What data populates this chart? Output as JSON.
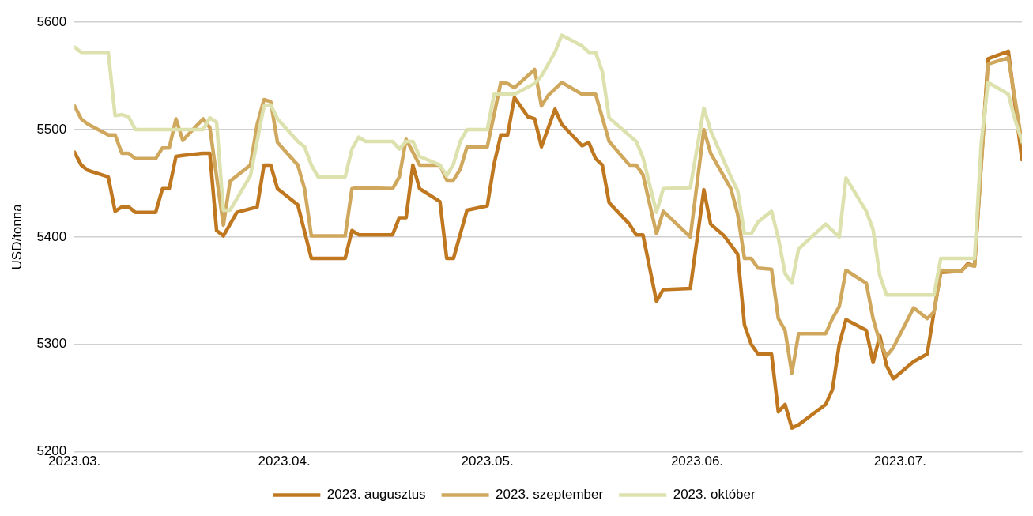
{
  "chart_data": {
    "type": "line",
    "ylabel": "USD/tonna",
    "xlim": [
      "2023-03-01",
      "2023-07-19"
    ],
    "xticks": [
      {
        "value": "2023-03-01",
        "label": "2023.03."
      },
      {
        "value": "2023-04-01",
        "label": "2023.04."
      },
      {
        "value": "2023-05-01",
        "label": "2023.05."
      },
      {
        "value": "2023-06-01",
        "label": "2023.06."
      },
      {
        "value": "2023-07-01",
        "label": "2023.07."
      }
    ],
    "ylim": [
      5200,
      5600
    ],
    "yticks": [
      5200,
      5300,
      5400,
      5500,
      5600
    ],
    "grid": "y",
    "legend": "bottom",
    "marker": "none",
    "line_style": "solid",
    "series": [
      {
        "name": "2023. augusztus",
        "color": "#c07820",
        "x": [
          "2023-03-01",
          "2023-03-02",
          "2023-03-03",
          "2023-03-06",
          "2023-03-07",
          "2023-03-08",
          "2023-03-09",
          "2023-03-10",
          "2023-03-13",
          "2023-03-14",
          "2023-03-15",
          "2023-03-16",
          "2023-03-17",
          "2023-03-20",
          "2023-03-21",
          "2023-03-22",
          "2023-03-23",
          "2023-03-25",
          "2023-03-28",
          "2023-03-29",
          "2023-03-30",
          "2023-03-31",
          "2023-04-03",
          "2023-04-04",
          "2023-04-05",
          "2023-04-10",
          "2023-04-11",
          "2023-04-12",
          "2023-04-17",
          "2023-04-18",
          "2023-04-19",
          "2023-04-20",
          "2023-04-21",
          "2023-04-24",
          "2023-04-25",
          "2023-04-26",
          "2023-04-28",
          "2023-05-01",
          "2023-05-02",
          "2023-05-03",
          "2023-05-04",
          "2023-05-05",
          "2023-05-07",
          "2023-05-08",
          "2023-05-09",
          "2023-05-11",
          "2023-05-12",
          "2023-05-15",
          "2023-05-16",
          "2023-05-17",
          "2023-05-18",
          "2023-05-19",
          "2023-05-22",
          "2023-05-23",
          "2023-05-24",
          "2023-05-26",
          "2023-05-27",
          "2023-05-31",
          "2023-06-02",
          "2023-06-03",
          "2023-06-05",
          "2023-06-07",
          "2023-06-08",
          "2023-06-09",
          "2023-06-10",
          "2023-06-12",
          "2023-06-13",
          "2023-06-14",
          "2023-06-15",
          "2023-06-16",
          "2023-06-20",
          "2023-06-21",
          "2023-06-22",
          "2023-06-23",
          "2023-06-26",
          "2023-06-27",
          "2023-06-28",
          "2023-06-29",
          "2023-06-30",
          "2023-07-03",
          "2023-07-05",
          "2023-07-06",
          "2023-07-07",
          "2023-07-10",
          "2023-07-11",
          "2023-07-12",
          "2023-07-14",
          "2023-07-17",
          "2023-07-19"
        ],
        "values": [
          5479,
          5467,
          5462,
          5456,
          5424,
          5428,
          5428,
          5423,
          5423,
          5445,
          5445,
          5475,
          5476,
          5478,
          5478,
          5406,
          5401,
          5423,
          5428,
          5467,
          5467,
          5445,
          5430,
          5405,
          5380,
          5380,
          5406,
          5402,
          5402,
          5418,
          5418,
          5467,
          5445,
          5433,
          5380,
          5380,
          5425,
          5429,
          5468,
          5495,
          5495,
          5530,
          5512,
          5510,
          5484,
          5519,
          5505,
          5485,
          5488,
          5473,
          5467,
          5432,
          5412,
          5402,
          5402,
          5340,
          5351,
          5352,
          5444,
          5412,
          5401,
          5384,
          5318,
          5300,
          5291,
          5291,
          5237,
          5244,
          5222,
          5225,
          5244,
          5258,
          5300,
          5323,
          5313,
          5283,
          5308,
          5280,
          5268,
          5284,
          5291,
          5330,
          5367,
          5368,
          5375,
          5373,
          5566,
          5573,
          5472
        ]
      },
      {
        "name": "2023. szeptember",
        "color": "#cfa85e",
        "x": [
          "2023-03-01",
          "2023-03-02",
          "2023-03-03",
          "2023-03-06",
          "2023-03-07",
          "2023-03-08",
          "2023-03-09",
          "2023-03-10",
          "2023-03-13",
          "2023-03-14",
          "2023-03-15",
          "2023-03-16",
          "2023-03-17",
          "2023-03-20",
          "2023-03-21",
          "2023-03-23",
          "2023-03-24",
          "2023-03-27",
          "2023-03-28",
          "2023-03-29",
          "2023-03-30",
          "2023-03-31",
          "2023-04-03",
          "2023-04-04",
          "2023-04-05",
          "2023-04-10",
          "2023-04-11",
          "2023-04-12",
          "2023-04-17",
          "2023-04-18",
          "2023-04-19",
          "2023-04-21",
          "2023-04-24",
          "2023-04-25",
          "2023-04-26",
          "2023-04-27",
          "2023-04-28",
          "2023-05-01",
          "2023-05-03",
          "2023-05-04",
          "2023-05-05",
          "2023-05-08",
          "2023-05-09",
          "2023-05-10",
          "2023-05-12",
          "2023-05-15",
          "2023-05-17",
          "2023-05-19",
          "2023-05-22",
          "2023-05-23",
          "2023-05-24",
          "2023-05-26",
          "2023-05-27",
          "2023-05-31",
          "2023-06-02",
          "2023-06-03",
          "2023-06-06",
          "2023-06-07",
          "2023-06-08",
          "2023-06-09",
          "2023-06-10",
          "2023-06-12",
          "2023-06-13",
          "2023-06-14",
          "2023-06-15",
          "2023-06-16",
          "2023-06-20",
          "2023-06-21",
          "2023-06-22",
          "2023-06-23",
          "2023-06-26",
          "2023-06-27",
          "2023-06-28",
          "2023-06-29",
          "2023-06-30",
          "2023-07-03",
          "2023-07-05",
          "2023-07-06",
          "2023-07-07",
          "2023-07-10",
          "2023-07-11",
          "2023-07-12",
          "2023-07-14",
          "2023-07-17",
          "2023-07-19"
        ],
        "values": [
          5522,
          5510,
          5505,
          5495,
          5495,
          5478,
          5478,
          5473,
          5473,
          5483,
          5483,
          5510,
          5490,
          5510,
          5502,
          5411,
          5452,
          5467,
          5505,
          5528,
          5526,
          5488,
          5467,
          5445,
          5401,
          5401,
          5445,
          5446,
          5445,
          5456,
          5491,
          5467,
          5467,
          5453,
          5453,
          5463,
          5484,
          5484,
          5544,
          5543,
          5539,
          5556,
          5522,
          5532,
          5544,
          5533,
          5533,
          5489,
          5467,
          5467,
          5458,
          5403,
          5424,
          5400,
          5500,
          5478,
          5445,
          5421,
          5380,
          5380,
          5371,
          5370,
          5324,
          5313,
          5273,
          5310,
          5310,
          5324,
          5335,
          5369,
          5357,
          5324,
          5302,
          5289,
          5297,
          5334,
          5324,
          5330,
          5369,
          5368,
          5374,
          5373,
          5561,
          5567,
          5488
        ]
      },
      {
        "name": "2023. október",
        "color": "#dce1ad",
        "x": [
          "2023-03-01",
          "2023-03-02",
          "2023-03-06",
          "2023-03-07",
          "2023-03-08",
          "2023-03-09",
          "2023-03-10",
          "2023-03-20",
          "2023-03-21",
          "2023-03-22",
          "2023-03-23",
          "2023-03-24",
          "2023-03-27",
          "2023-03-29",
          "2023-03-30",
          "2023-03-31",
          "2023-04-03",
          "2023-04-04",
          "2023-04-05",
          "2023-04-06",
          "2023-04-10",
          "2023-04-11",
          "2023-04-12",
          "2023-04-13",
          "2023-04-17",
          "2023-04-18",
          "2023-04-19",
          "2023-04-20",
          "2023-04-21",
          "2023-04-24",
          "2023-04-25",
          "2023-04-26",
          "2023-04-27",
          "2023-04-28",
          "2023-05-01",
          "2023-05-02",
          "2023-05-05",
          "2023-05-08",
          "2023-05-09",
          "2023-05-11",
          "2023-05-12",
          "2023-05-15",
          "2023-05-16",
          "2023-05-17",
          "2023-05-18",
          "2023-05-19",
          "2023-05-23",
          "2023-05-24",
          "2023-05-26",
          "2023-05-27",
          "2023-05-31",
          "2023-06-02",
          "2023-06-03",
          "2023-06-06",
          "2023-06-07",
          "2023-06-08",
          "2023-06-09",
          "2023-06-10",
          "2023-06-12",
          "2023-06-13",
          "2023-06-14",
          "2023-06-15",
          "2023-06-16",
          "2023-06-20",
          "2023-06-22",
          "2023-06-23",
          "2023-06-26",
          "2023-06-27",
          "2023-06-28",
          "2023-06-29",
          "2023-07-06",
          "2023-07-07",
          "2023-07-12",
          "2023-07-13",
          "2023-07-14",
          "2023-07-17",
          "2023-07-18",
          "2023-07-19"
        ],
        "values": [
          5577,
          5572,
          5572,
          5513,
          5514,
          5512,
          5500,
          5500,
          5511,
          5507,
          5425,
          5425,
          5457,
          5522,
          5523,
          5510,
          5489,
          5484,
          5467,
          5456,
          5456,
          5482,
          5493,
          5489,
          5489,
          5482,
          5489,
          5489,
          5475,
          5467,
          5457,
          5468,
          5489,
          5500,
          5500,
          5533,
          5533,
          5543,
          5550,
          5572,
          5588,
          5578,
          5572,
          5572,
          5554,
          5511,
          5489,
          5474,
          5423,
          5445,
          5446,
          5520,
          5499,
          5456,
          5443,
          5403,
          5403,
          5414,
          5424,
          5399,
          5366,
          5357,
          5389,
          5412,
          5400,
          5455,
          5424,
          5407,
          5364,
          5346,
          5346,
          5380,
          5380,
          5488,
          5544,
          5533,
          5509,
          5489
        ]
      }
    ]
  }
}
